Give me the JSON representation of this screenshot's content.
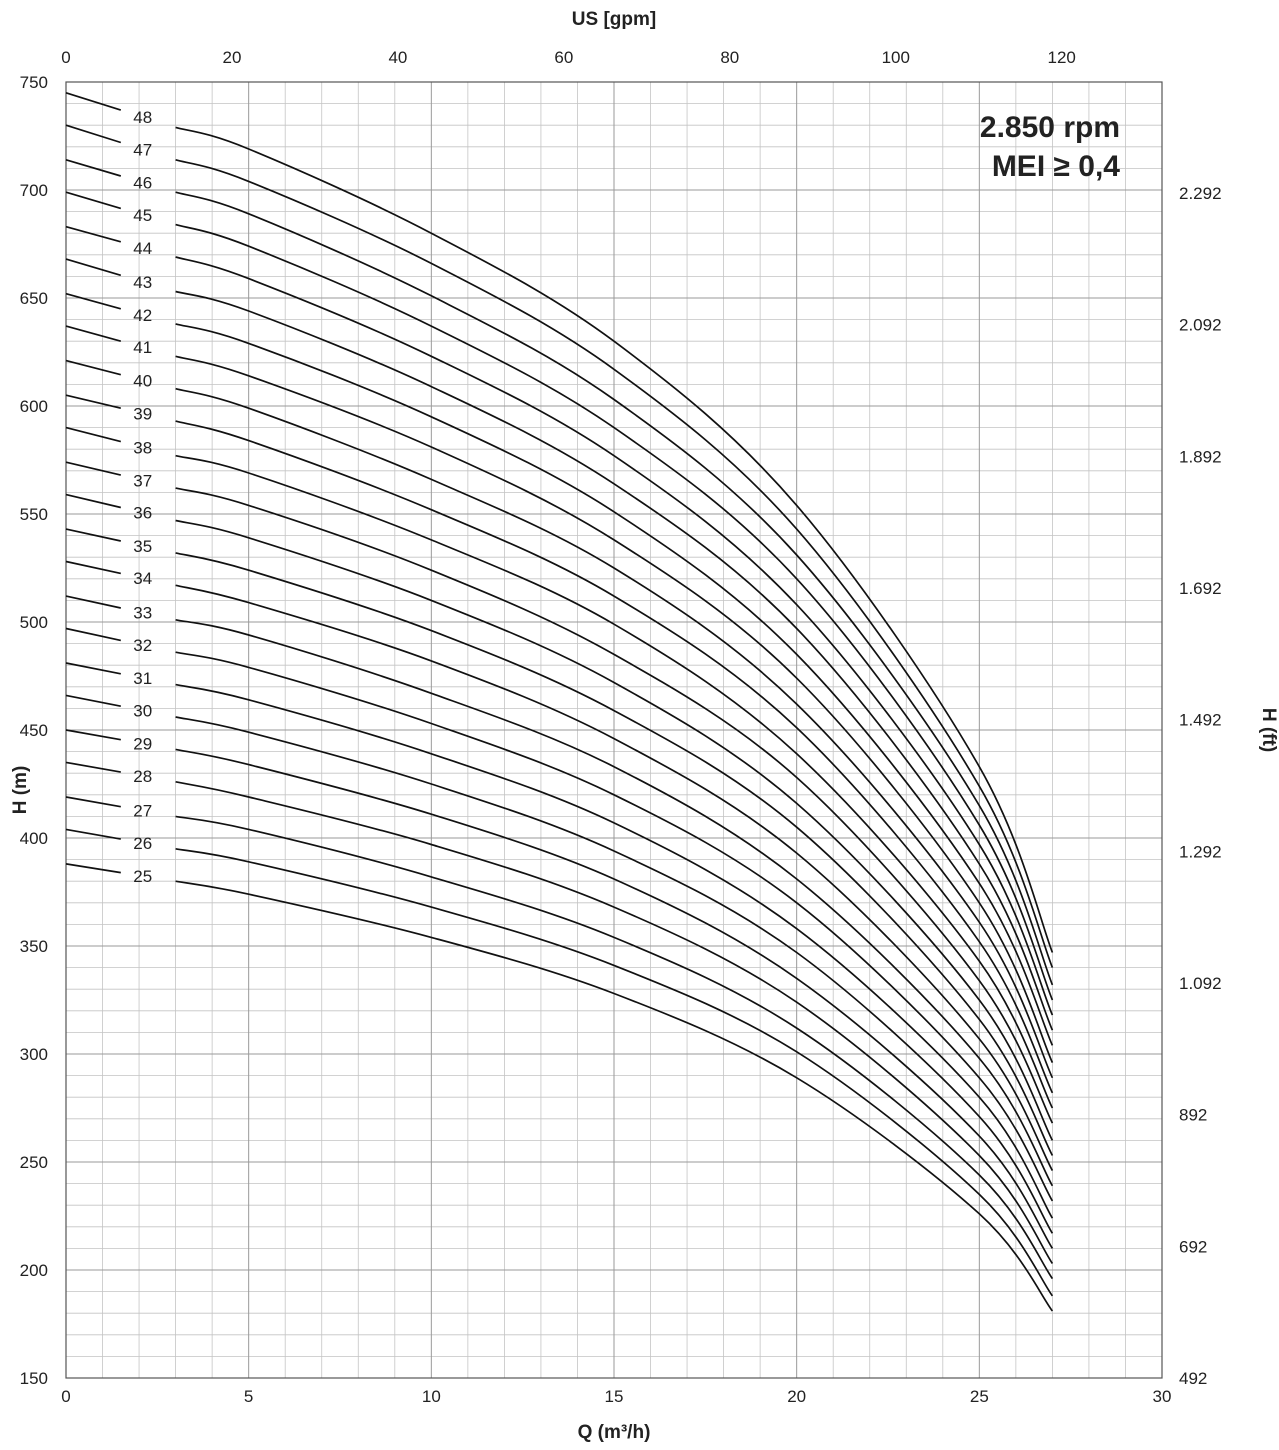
{
  "chart_data": {
    "type": "line",
    "xlabel": "Q (m³/h)",
    "x2label": "US [gpm]",
    "ylabel": "H (m)",
    "y2label": "H (ft)",
    "xlim": [
      0,
      30
    ],
    "ylim": [
      150,
      750
    ],
    "x_ticks": [
      0,
      5,
      10,
      15,
      20,
      25,
      30
    ],
    "x2_ticks": [
      0,
      20,
      40,
      60,
      80,
      100,
      120
    ],
    "x2_tick_labels": [
      "0",
      "20",
      "40",
      "60",
      "80",
      "100",
      "120"
    ],
    "y_ticks": [
      150,
      200,
      250,
      300,
      350,
      400,
      450,
      500,
      550,
      600,
      650,
      700,
      750
    ],
    "y2_ticks": [
      492,
      692,
      892,
      1092,
      1292,
      1492,
      1692,
      1892,
      2092,
      2292
    ],
    "y2_tick_labels": [
      "492",
      "692",
      "892",
      "1.092",
      "1.292",
      "1.492",
      "1.692",
      "1.892",
      "2.092",
      "2.292"
    ],
    "grid": true,
    "annotation": [
      "2.850 rpm",
      "MEI ≥ 0,4"
    ],
    "x": [
      0,
      3,
      5,
      10,
      15,
      20,
      25,
      27
    ],
    "series": [
      {
        "name": "25",
        "values": [
          388,
          380,
          374,
          354,
          328,
          289,
          226,
          181
        ]
      },
      {
        "name": "26",
        "values": [
          404,
          395,
          389,
          368,
          341,
          301,
          235,
          188
        ]
      },
      {
        "name": "27",
        "values": [
          419,
          410,
          404,
          382,
          354,
          312,
          244,
          196
        ]
      },
      {
        "name": "28",
        "values": [
          435,
          426,
          419,
          397,
          368,
          324,
          253,
          203
        ]
      },
      {
        "name": "29",
        "values": [
          450,
          441,
          434,
          411,
          381,
          335,
          262,
          210
        ]
      },
      {
        "name": "30",
        "values": [
          466,
          456,
          449,
          425,
          394,
          347,
          271,
          217
        ]
      },
      {
        "name": "31",
        "values": [
          481,
          471,
          464,
          439,
          407,
          358,
          280,
          224
        ]
      },
      {
        "name": "32",
        "values": [
          497,
          486,
          479,
          453,
          420,
          370,
          289,
          232
        ]
      },
      {
        "name": "33",
        "values": [
          512,
          501,
          494,
          467,
          433,
          381,
          298,
          239
        ]
      },
      {
        "name": "34",
        "values": [
          528,
          517,
          509,
          482,
          446,
          393,
          307,
          246
        ]
      },
      {
        "name": "35",
        "values": [
          543,
          532,
          524,
          496,
          459,
          405,
          316,
          253
        ]
      },
      {
        "name": "36",
        "values": [
          559,
          547,
          539,
          510,
          472,
          416,
          325,
          260
        ]
      },
      {
        "name": "37",
        "values": [
          574,
          562,
          554,
          524,
          485,
          428,
          334,
          268
        ]
      },
      {
        "name": "38",
        "values": [
          590,
          577,
          569,
          538,
          499,
          439,
          343,
          275
        ]
      },
      {
        "name": "39",
        "values": [
          605,
          593,
          584,
          552,
          512,
          451,
          352,
          282
        ]
      },
      {
        "name": "40",
        "values": [
          621,
          608,
          599,
          566,
          525,
          462,
          361,
          289
        ]
      },
      {
        "name": "41",
        "values": [
          637,
          623,
          614,
          581,
          538,
          474,
          370,
          296
        ]
      },
      {
        "name": "42",
        "values": [
          652,
          638,
          629,
          595,
          551,
          485,
          379,
          304
        ]
      },
      {
        "name": "43",
        "values": [
          668,
          653,
          644,
          609,
          564,
          497,
          388,
          311
        ]
      },
      {
        "name": "44",
        "values": [
          683,
          669,
          659,
          623,
          577,
          508,
          397,
          318
        ]
      },
      {
        "name": "45",
        "values": [
          699,
          684,
          674,
          637,
          590,
          520,
          406,
          325
        ]
      },
      {
        "name": "46",
        "values": [
          714,
          699,
          689,
          651,
          603,
          531,
          415,
          332
        ]
      },
      {
        "name": "47",
        "values": [
          730,
          714,
          704,
          666,
          617,
          543,
          424,
          340
        ]
      },
      {
        "name": "48",
        "values": [
          745,
          729,
          719,
          680,
          630,
          554,
          433,
          347
        ]
      }
    ]
  }
}
